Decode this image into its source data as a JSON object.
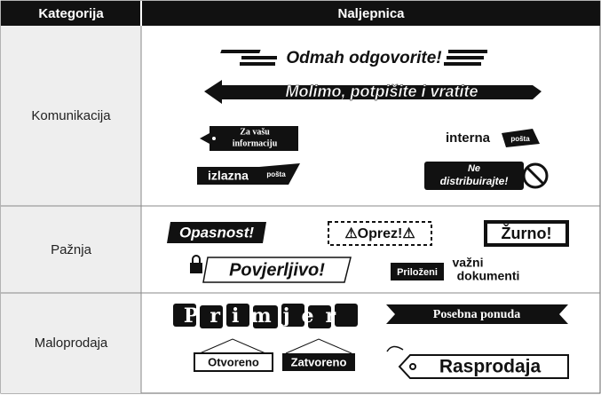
{
  "table": {
    "header": [
      "Kategorija",
      "Naljepnica"
    ],
    "rows": [
      {
        "category": "Komunikacija",
        "labels": [
          "Odmah odgovorite!",
          "Molimo, potpišite i vratite",
          "Za vašu",
          "informaciju",
          "interna",
          "pošta",
          "izlazna",
          "pošta",
          "Ne",
          "distribuirajte!"
        ]
      },
      {
        "category": "Pažnja",
        "labels": [
          "Opasnost!",
          "⚠Oprez!⚠",
          "Žurno!",
          "Povjerljivo!",
          "Priloženi",
          "važni",
          "dokumenti"
        ]
      },
      {
        "category": "Maloprodaja",
        "labels": [
          "Primjer",
          "Posebna ponuda",
          "Otvoreno",
          "Zatvoreno",
          "Rasprodaja"
        ]
      }
    ]
  }
}
